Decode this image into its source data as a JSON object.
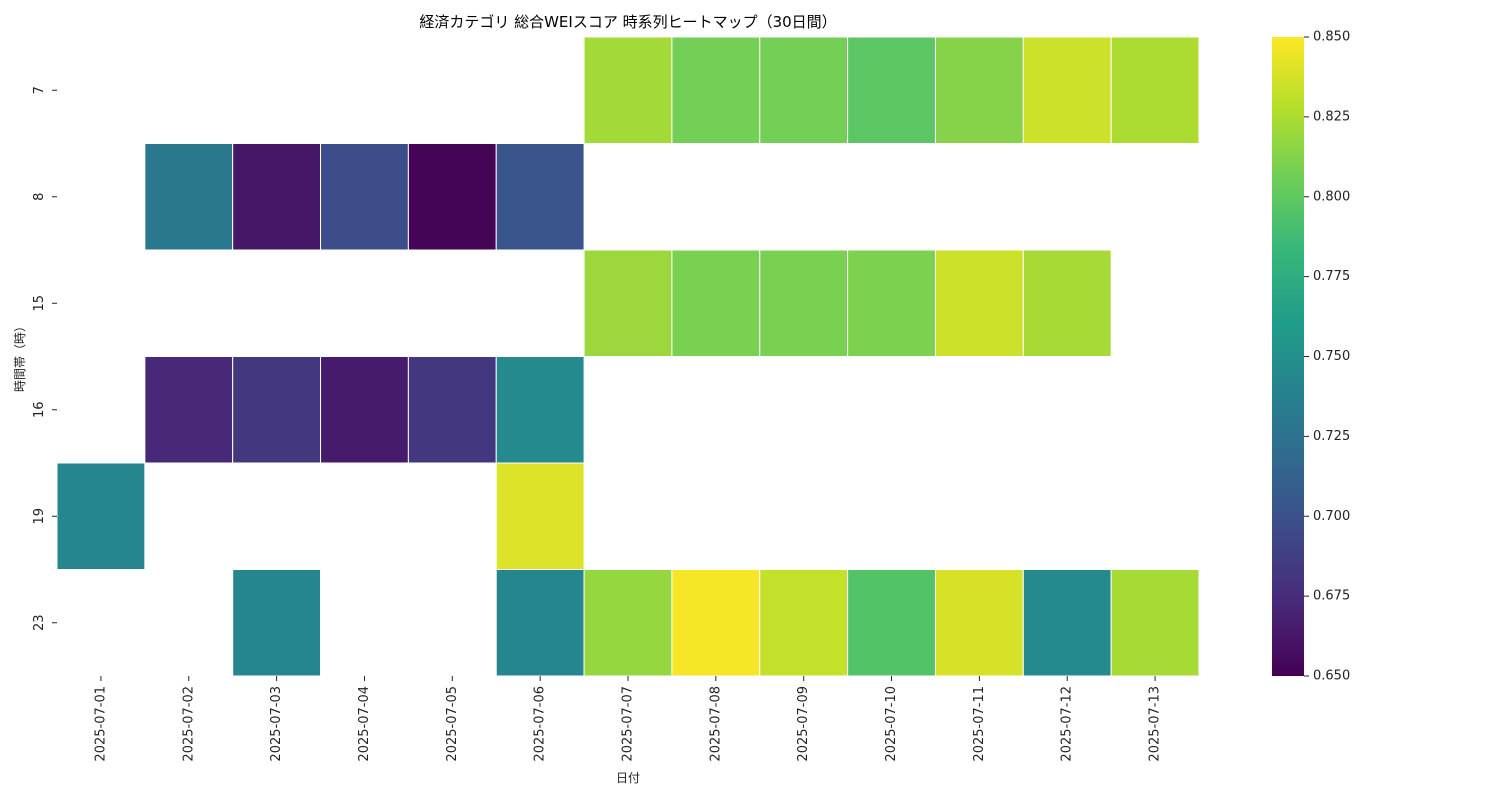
{
  "chart_data": {
    "type": "heatmap",
    "title": "経済カテゴリ 総合WEIスコア 時系列ヒートマップ（30日間）",
    "xlabel": "日付",
    "ylabel": "時間帯（時）",
    "x": [
      "2025-07-01",
      "2025-07-02",
      "2025-07-03",
      "2025-07-04",
      "2025-07-05",
      "2025-07-06",
      "2025-07-07",
      "2025-07-08",
      "2025-07-09",
      "2025-07-10",
      "2025-07-11",
      "2025-07-12",
      "2025-07-13"
    ],
    "y": [
      "7",
      "8",
      "15",
      "16",
      "19",
      "23"
    ],
    "values": [
      [
        null,
        null,
        null,
        null,
        null,
        null,
        0.822,
        0.807,
        0.807,
        0.798,
        0.813,
        0.835,
        0.825
      ],
      [
        null,
        0.73,
        0.662,
        0.697,
        0.652,
        0.703,
        null,
        null,
        null,
        null,
        null,
        null,
        null
      ],
      [
        null,
        null,
        null,
        null,
        null,
        null,
        0.82,
        0.809,
        0.809,
        0.81,
        0.835,
        0.823,
        null
      ],
      [
        null,
        0.673,
        0.683,
        0.665,
        0.683,
        0.745,
        null,
        null,
        null,
        null,
        null,
        null,
        null
      ],
      [
        0.742,
        null,
        null,
        null,
        null,
        0.84,
        null,
        null,
        null,
        null,
        null,
        null,
        null
      ],
      [
        null,
        null,
        0.743,
        null,
        null,
        0.743,
        0.818,
        0.848,
        0.832,
        0.795,
        0.838,
        0.745,
        0.823
      ]
    ],
    "colormap": "viridis",
    "colorbar": {
      "vmin": 0.65,
      "vmax": 0.85,
      "ticks": [
        "0.650",
        "0.675",
        "0.700",
        "0.725",
        "0.750",
        "0.775",
        "0.800",
        "0.825",
        "0.850"
      ]
    },
    "grid": false
  }
}
